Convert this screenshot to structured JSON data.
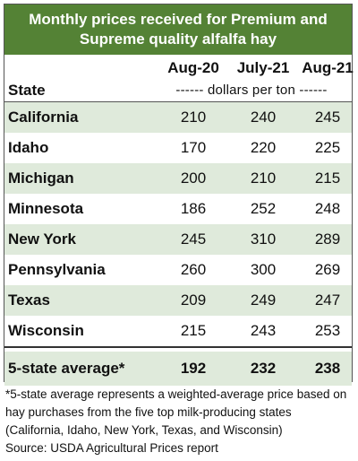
{
  "chart_data": {
    "type": "table",
    "title_lines": [
      "Monthly prices received for Premium and",
      "Supreme quality alfalfa hay"
    ],
    "state_header": "State",
    "columns": [
      "Aug-20",
      "July-21",
      "Aug-21"
    ],
    "units": "------ dollars per ton ------",
    "rows": [
      {
        "state": "California",
        "values": [
          210,
          240,
          245
        ]
      },
      {
        "state": "Idaho",
        "values": [
          170,
          220,
          225
        ]
      },
      {
        "state": "Michigan",
        "values": [
          200,
          210,
          215
        ]
      },
      {
        "state": "Minnesota",
        "values": [
          186,
          252,
          248
        ]
      },
      {
        "state": "New York",
        "values": [
          245,
          310,
          289
        ]
      },
      {
        "state": "Pennsylvania",
        "values": [
          260,
          300,
          269
        ]
      },
      {
        "state": "Texas",
        "values": [
          209,
          249,
          247
        ]
      },
      {
        "state": "Wisconsin",
        "values": [
          215,
          243,
          253
        ]
      }
    ],
    "average_row": {
      "state": "5-state average*",
      "values": [
        192,
        232,
        238
      ]
    },
    "footnote_lines": [
      "*5-state average represents  a weighted-average price based on",
      "hay purchases from the five top milk-producing states",
      "(California, Idaho, New York, Texas, and Wisconsin)",
      "Source: USDA Agricultural Prices report"
    ]
  },
  "colors": {
    "title_background": "#548235",
    "shaded_row": "#dfeadb",
    "average_row": "#dfeadb",
    "border": "#555555"
  }
}
